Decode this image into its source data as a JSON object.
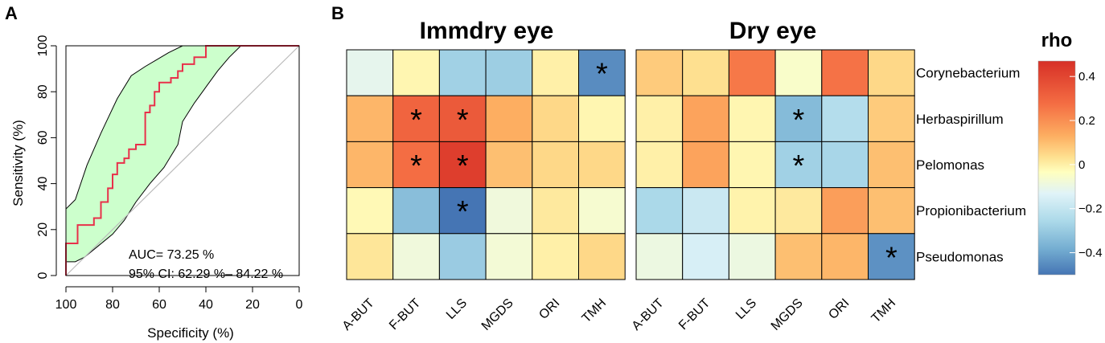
{
  "panels": {
    "a_label": "A",
    "b_label": "B"
  },
  "chart_data": [
    {
      "type": "line",
      "panel": "A",
      "xlabel": "Specificity (%)",
      "ylabel": "Sensitivity (%)",
      "xlim": [
        100,
        0
      ],
      "ylim": [
        0,
        100
      ],
      "x_ticks": [
        "100",
        "80",
        "60",
        "40",
        "20",
        "0"
      ],
      "y_ticks": [
        "0",
        "20",
        "40",
        "60",
        "80",
        "100"
      ],
      "annotations": {
        "auc": "AUC= 73.25 %",
        "ci": "95% CI: 62.29 %– 84.22 %"
      },
      "colors": {
        "roc": "#e8304a",
        "ci_fill": "#ccffcc",
        "diagonal": "#bbbbbb"
      },
      "roc": [
        [
          100,
          0
        ],
        [
          100,
          14
        ],
        [
          95,
          14
        ],
        [
          95,
          22
        ],
        [
          88,
          22
        ],
        [
          88,
          25
        ],
        [
          85,
          25
        ],
        [
          85,
          32
        ],
        [
          82,
          32
        ],
        [
          82,
          38
        ],
        [
          80,
          38
        ],
        [
          80,
          44
        ],
        [
          78,
          44
        ],
        [
          78,
          49
        ],
        [
          75,
          49
        ],
        [
          75,
          51
        ],
        [
          73,
          51
        ],
        [
          73,
          55
        ],
        [
          70,
          55
        ],
        [
          70,
          57
        ],
        [
          66,
          57
        ],
        [
          66,
          71
        ],
        [
          64,
          71
        ],
        [
          64,
          74
        ],
        [
          62,
          74
        ],
        [
          62,
          80
        ],
        [
          60,
          80
        ],
        [
          60,
          84
        ],
        [
          55,
          84
        ],
        [
          55,
          86
        ],
        [
          52,
          86
        ],
        [
          52,
          89
        ],
        [
          50,
          89
        ],
        [
          50,
          92
        ],
        [
          45,
          92
        ],
        [
          45,
          95
        ],
        [
          40,
          95
        ],
        [
          40,
          100
        ],
        [
          0,
          100
        ]
      ],
      "ci_upper": [
        [
          100,
          29
        ],
        [
          96,
          33
        ],
        [
          91,
          48
        ],
        [
          85,
          62
        ],
        [
          78,
          77
        ],
        [
          72,
          87
        ],
        [
          66,
          91
        ],
        [
          61,
          94
        ],
        [
          56,
          97
        ],
        [
          50,
          100
        ],
        [
          0,
          100
        ]
      ],
      "ci_lower": [
        [
          100,
          6
        ],
        [
          96,
          6
        ],
        [
          92,
          8
        ],
        [
          86,
          13
        ],
        [
          80,
          18
        ],
        [
          75,
          24
        ],
        [
          70,
          32
        ],
        [
          64,
          40
        ],
        [
          58,
          47
        ],
        [
          52,
          57
        ],
        [
          50,
          67
        ],
        [
          45,
          75
        ],
        [
          40,
          82
        ],
        [
          35,
          89
        ],
        [
          30,
          95
        ],
        [
          25,
          100
        ],
        [
          20,
          100
        ]
      ]
    },
    {
      "type": "heatmap",
      "panel": "B",
      "columns": [
        "A-BUT",
        "F-BUT",
        "LLS",
        "MGDS",
        "ORI",
        "TMH"
      ],
      "rows": [
        "Corynebacterium",
        "Herbaspirillum",
        "Pelomonas",
        "Propionibacterium",
        "Pseudomonas"
      ],
      "legend": {
        "title": "rho",
        "ticks": [
          "0.4",
          "0.2",
          "0",
          "−0.2",
          "−0.4"
        ],
        "tick_values": [
          0.4,
          0.2,
          0,
          -0.2,
          -0.4
        ],
        "range": [
          -0.5,
          0.47
        ]
      },
      "panels": [
        {
          "title": "Immdry eye",
          "values": [
            [
              -0.08,
              0.03,
              -0.25,
              -0.26,
              0.05,
              -0.45
            ],
            [
              0.2,
              0.36,
              0.38,
              0.22,
              0.12,
              0.03
            ],
            [
              0.2,
              0.34,
              0.44,
              0.18,
              0.12,
              0.12
            ],
            [
              0.02,
              -0.32,
              -0.5,
              -0.05,
              0.07,
              -0.03
            ],
            [
              0.08,
              -0.05,
              -0.27,
              -0.04,
              0.05,
              0.12
            ]
          ],
          "stars": [
            [
              0,
              5
            ],
            [
              1,
              1
            ],
            [
              1,
              2
            ],
            [
              2,
              1
            ],
            [
              2,
              2
            ],
            [
              3,
              2
            ]
          ]
        },
        {
          "title": "Dry eye",
          "values": [
            [
              0.15,
              0.1,
              0.32,
              -0.02,
              0.33,
              0.12
            ],
            [
              0.05,
              0.24,
              0.03,
              -0.33,
              -0.2,
              0.15
            ],
            [
              0.05,
              0.24,
              0.03,
              -0.25,
              -0.23,
              0.18
            ],
            [
              -0.22,
              -0.15,
              0.04,
              0.07,
              0.25,
              0.18
            ],
            [
              -0.06,
              -0.12,
              -0.06,
              0.18,
              0.2,
              -0.44
            ]
          ],
          "stars": [
            [
              1,
              3
            ],
            [
              2,
              3
            ],
            [
              4,
              5
            ]
          ]
        }
      ]
    }
  ]
}
